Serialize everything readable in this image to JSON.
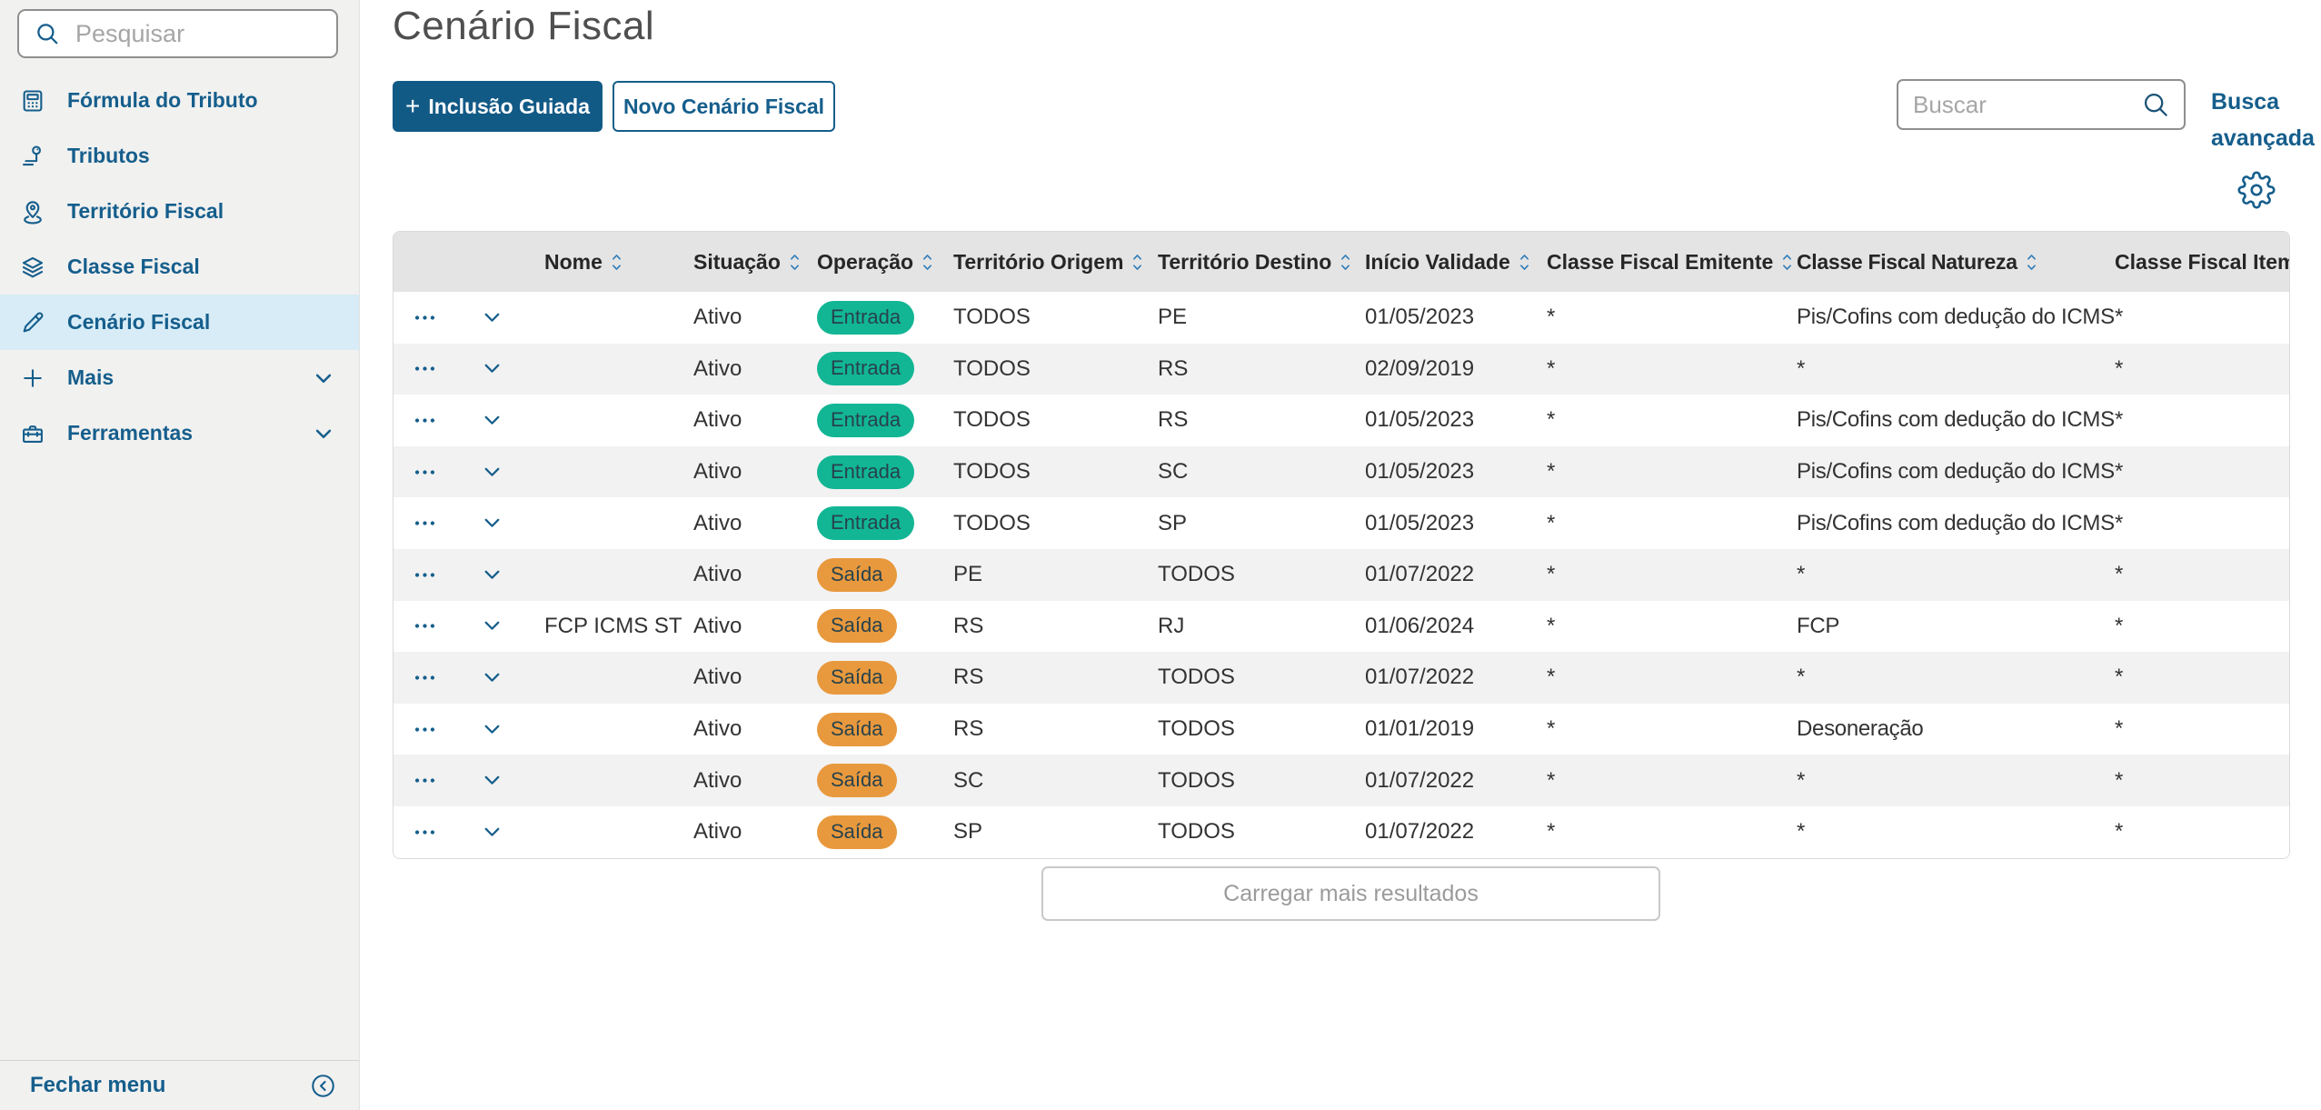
{
  "sidebar": {
    "search": {
      "placeholder": "Pesquisar"
    },
    "items": [
      {
        "label": "Fórmula do Tributo",
        "icon": "calculator-icon",
        "active": false,
        "expandable": false
      },
      {
        "label": "Tributos",
        "icon": "tributos-icon",
        "active": false,
        "expandable": false
      },
      {
        "label": "Território Fiscal",
        "icon": "map-pin-icon",
        "active": false,
        "expandable": false
      },
      {
        "label": "Classe Fiscal",
        "icon": "layers-icon",
        "active": false,
        "expandable": false
      },
      {
        "label": "Cenário Fiscal",
        "icon": "pencil-icon",
        "active": true,
        "expandable": false
      },
      {
        "label": "Mais",
        "icon": "plus-icon",
        "active": false,
        "expandable": true
      },
      {
        "label": "Ferramentas",
        "icon": "toolbox-icon",
        "active": false,
        "expandable": true
      }
    ],
    "close_menu_label": "Fechar menu"
  },
  "header": {
    "title": "Cenário Fiscal",
    "buttons": {
      "guided_plus": "+",
      "guided_label": "Inclusão Guiada",
      "new_label": "Novo Cenário Fiscal"
    },
    "search_placeholder": "Buscar",
    "advanced_search_label": "Busca avançada"
  },
  "table": {
    "columns": [
      {
        "key": "nome",
        "label": "Nome"
      },
      {
        "key": "situacao",
        "label": "Situação"
      },
      {
        "key": "operacao",
        "label": "Operação"
      },
      {
        "key": "origem",
        "label": "Território Origem"
      },
      {
        "key": "destino",
        "label": "Território Destino"
      },
      {
        "key": "inicio",
        "label": "Início Validade"
      },
      {
        "key": "emitente",
        "label": "Classe Fiscal Emitente"
      },
      {
        "key": "natureza",
        "label": "Classe Fiscal Natureza"
      },
      {
        "key": "item",
        "label": "Classe Fiscal Item"
      }
    ],
    "rows": [
      {
        "nome": "",
        "situacao": "Ativo",
        "operacao": "Entrada",
        "origem": "TODOS",
        "destino": "PE",
        "inicio": "01/05/2023",
        "emitente": "*",
        "natureza": "Pis/Cofins com dedução do ICMS",
        "item": "*"
      },
      {
        "nome": "",
        "situacao": "Ativo",
        "operacao": "Entrada",
        "origem": "TODOS",
        "destino": "RS",
        "inicio": "02/09/2019",
        "emitente": "*",
        "natureza": "*",
        "item": "*"
      },
      {
        "nome": "",
        "situacao": "Ativo",
        "operacao": "Entrada",
        "origem": "TODOS",
        "destino": "RS",
        "inicio": "01/05/2023",
        "emitente": "*",
        "natureza": "Pis/Cofins com dedução do ICMS",
        "item": "*"
      },
      {
        "nome": "",
        "situacao": "Ativo",
        "operacao": "Entrada",
        "origem": "TODOS",
        "destino": "SC",
        "inicio": "01/05/2023",
        "emitente": "*",
        "natureza": "Pis/Cofins com dedução do ICMS",
        "item": "*"
      },
      {
        "nome": "",
        "situacao": "Ativo",
        "operacao": "Entrada",
        "origem": "TODOS",
        "destino": "SP",
        "inicio": "01/05/2023",
        "emitente": "*",
        "natureza": "Pis/Cofins com dedução do ICMS",
        "item": "*"
      },
      {
        "nome": "",
        "situacao": "Ativo",
        "operacao": "Saída",
        "origem": "PE",
        "destino": "TODOS",
        "inicio": "01/07/2022",
        "emitente": "*",
        "natureza": "*",
        "item": "*"
      },
      {
        "nome": "FCP ICMS ST",
        "situacao": "Ativo",
        "operacao": "Saída",
        "origem": "RS",
        "destino": "RJ",
        "inicio": "01/06/2024",
        "emitente": "*",
        "natureza": "FCP",
        "item": "*"
      },
      {
        "nome": "",
        "situacao": "Ativo",
        "operacao": "Saída",
        "origem": "RS",
        "destino": "TODOS",
        "inicio": "01/07/2022",
        "emitente": "*",
        "natureza": "*",
        "item": "*"
      },
      {
        "nome": "",
        "situacao": "Ativo",
        "operacao": "Saída",
        "origem": "RS",
        "destino": "TODOS",
        "inicio": "01/01/2019",
        "emitente": "*",
        "natureza": "Desoneração",
        "item": "*"
      },
      {
        "nome": "",
        "situacao": "Ativo",
        "operacao": "Saída",
        "origem": "SC",
        "destino": "TODOS",
        "inicio": "01/07/2022",
        "emitente": "*",
        "natureza": "*",
        "item": "*"
      },
      {
        "nome": "",
        "situacao": "Ativo",
        "operacao": "Saída",
        "origem": "SP",
        "destino": "TODOS",
        "inicio": "01/07/2022",
        "emitente": "*",
        "natureza": "*",
        "item": "*"
      }
    ],
    "load_more_label": "Carregar mais resultados"
  },
  "colors": {
    "accent_blue": "#155e8c",
    "primary_button_bg": "#125a86",
    "active_item_bg": "#d7ecf7",
    "sidebar_bg": "#f1f1f0",
    "header_row_bg": "#e4e4e4",
    "row_alt_bg": "#f2f2f2",
    "badge_entrada_bg": "#12b694",
    "badge_saida_bg": "#e8993d",
    "badge_text": "#27424d"
  }
}
